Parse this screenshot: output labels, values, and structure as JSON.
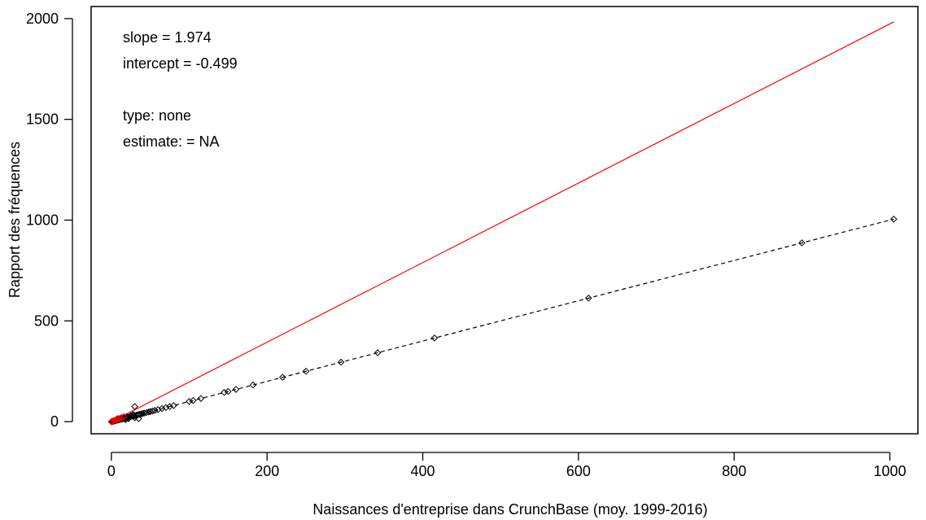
{
  "chart_data": {
    "type": "scatter",
    "title": "",
    "xlabel": "Naissances d'entreprise dans CrunchBase (moy. 1999-2016)",
    "ylabel": "Rapport des fréquences",
    "xlim": [
      -26,
      1036
    ],
    "ylim": [
      -60,
      2060
    ],
    "x_ticks": [
      0,
      200,
      400,
      600,
      800,
      1000
    ],
    "x_tick_labels": [
      "0",
      "200",
      "400",
      "600",
      "800",
      "1000"
    ],
    "y_ticks": [
      0,
      500,
      1000,
      1500,
      2000
    ],
    "y_tick_labels": [
      "0",
      "500",
      "1000",
      "1500",
      "2000"
    ],
    "grid": false,
    "annotations": [
      "slope = 1.974",
      "intercept = -0.499",
      "type: none",
      "estimate:  = NA"
    ],
    "series": [
      {
        "kind": "points",
        "marker": "diamond-open",
        "color": "#000000",
        "points": [
          [
            0,
            0
          ],
          [
            0.3,
            0.5
          ],
          [
            0.6,
            1
          ],
          [
            1,
            1
          ],
          [
            1.5,
            2
          ],
          [
            2,
            2
          ],
          [
            2.5,
            3
          ],
          [
            3,
            3
          ],
          [
            3.5,
            4
          ],
          [
            4,
            4
          ],
          [
            5,
            5
          ],
          [
            5.5,
            6
          ],
          [
            6,
            6
          ],
          [
            7,
            7
          ],
          [
            8,
            8
          ],
          [
            9,
            9
          ],
          [
            10,
            10
          ],
          [
            11,
            12
          ],
          [
            12,
            12
          ],
          [
            13,
            13
          ],
          [
            14,
            14
          ],
          [
            15,
            15
          ],
          [
            16,
            16
          ],
          [
            17,
            17
          ],
          [
            18,
            18
          ],
          [
            19,
            19
          ],
          [
            20,
            20
          ],
          [
            22,
            22
          ],
          [
            24,
            24
          ],
          [
            25,
            25
          ],
          [
            27,
            27
          ],
          [
            29,
            29
          ],
          [
            30,
            30
          ],
          [
            32,
            32
          ],
          [
            34,
            34
          ],
          [
            36,
            36
          ],
          [
            38,
            38
          ],
          [
            40,
            40
          ],
          [
            42,
            42
          ],
          [
            45,
            45
          ],
          [
            48,
            48
          ],
          [
            50,
            50
          ],
          [
            53,
            53
          ],
          [
            56,
            56
          ],
          [
            60,
            60
          ],
          [
            65,
            65
          ],
          [
            70,
            70
          ],
          [
            75,
            75
          ],
          [
            80,
            80
          ],
          [
            100,
            100
          ],
          [
            105,
            105
          ],
          [
            115,
            115
          ],
          [
            145,
            145
          ],
          [
            150,
            150
          ],
          [
            160,
            160
          ],
          [
            182,
            182
          ],
          [
            220,
            220
          ],
          [
            250,
            250
          ],
          [
            295,
            295
          ],
          [
            342,
            342
          ],
          [
            415,
            415
          ],
          [
            613,
            613
          ],
          [
            887,
            887
          ],
          [
            1005,
            1005
          ],
          [
            15,
            20
          ],
          [
            25,
            30
          ],
          [
            30,
            75
          ],
          [
            30,
            20
          ],
          [
            35,
            15
          ],
          [
            20,
            25
          ],
          [
            8,
            15
          ],
          [
            12,
            18
          ],
          [
            18,
            10
          ],
          [
            6,
            10
          ],
          [
            28,
            35
          ],
          [
            22,
            15
          ]
        ]
      },
      {
        "kind": "line",
        "name": "",
        "style": "dashed",
        "color": "#000000",
        "x": [
          0,
          1005
        ],
        "y": [
          0,
          1005
        ]
      },
      {
        "kind": "line",
        "name": "",
        "style": "solid",
        "color": "#ff0000",
        "x": [
          0,
          1005
        ],
        "y": [
          -0.499,
          1983.4
        ]
      },
      {
        "kind": "points",
        "marker": "diamond-open",
        "color": "#ff0000",
        "points": [
          [
            0,
            0
          ],
          [
            2,
            3
          ],
          [
            4,
            6
          ],
          [
            6,
            8
          ],
          [
            8,
            12
          ],
          [
            10,
            15
          ],
          [
            13,
            20
          ],
          [
            16,
            25
          ]
        ]
      }
    ]
  }
}
